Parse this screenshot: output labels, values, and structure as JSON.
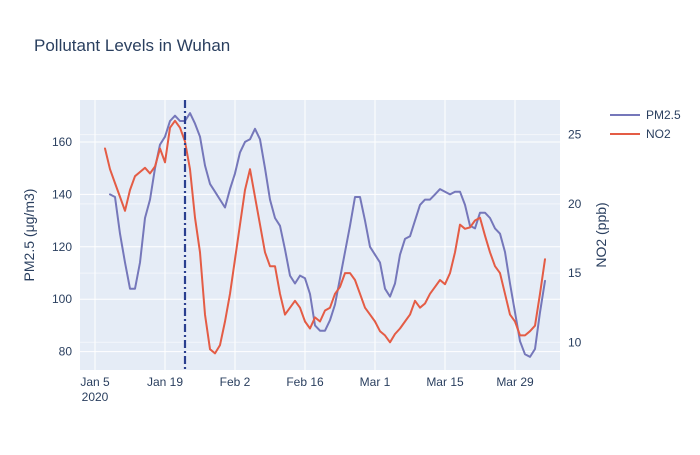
{
  "chart_data": {
    "type": "line",
    "title": "Pollutant Levels in Wuhan",
    "xlabel": "",
    "ylabel": "PM2.5 (μg/m3)",
    "y2label": "NO2 (ppb)",
    "x_ticks": [
      "Jan 5",
      "Jan 19",
      "Feb 2",
      "Feb 16",
      "Mar 1",
      "Mar 15",
      "Mar 29"
    ],
    "x_tick_dates": [
      "2020-01-05",
      "2020-01-19",
      "2020-02-02",
      "2020-02-16",
      "2020-03-01",
      "2020-03-15",
      "2020-03-29"
    ],
    "x_year_label": "2020",
    "xlim": [
      "2020-01-02",
      "2020-04-07"
    ],
    "ylim": [
      73,
      176
    ],
    "y_ticks": [
      80,
      100,
      120,
      140,
      160
    ],
    "y2lim": [
      8,
      27.5
    ],
    "y2_ticks": [
      10,
      15,
      20,
      25
    ],
    "grid": true,
    "legend_position": "top-right",
    "vline": {
      "x": "2020-01-23",
      "style": "dash-dot",
      "color": "#2a3f8f"
    },
    "series": [
      {
        "name": "PM2.5",
        "axis": "y",
        "color": "#7577ba",
        "x": [
          "2020-01-08",
          "2020-01-09",
          "2020-01-10",
          "2020-01-11",
          "2020-01-12",
          "2020-01-13",
          "2020-01-14",
          "2020-01-15",
          "2020-01-16",
          "2020-01-17",
          "2020-01-18",
          "2020-01-19",
          "2020-01-20",
          "2020-01-21",
          "2020-01-22",
          "2020-01-23",
          "2020-01-24",
          "2020-01-25",
          "2020-01-26",
          "2020-01-27",
          "2020-01-28",
          "2020-01-29",
          "2020-01-30",
          "2020-01-31",
          "2020-02-01",
          "2020-02-02",
          "2020-02-03",
          "2020-02-04",
          "2020-02-05",
          "2020-02-06",
          "2020-02-07",
          "2020-02-08",
          "2020-02-09",
          "2020-02-10",
          "2020-02-11",
          "2020-02-12",
          "2020-02-13",
          "2020-02-14",
          "2020-02-15",
          "2020-02-16",
          "2020-02-17",
          "2020-02-18",
          "2020-02-19",
          "2020-02-20",
          "2020-02-21",
          "2020-02-22",
          "2020-02-23",
          "2020-02-24",
          "2020-02-25",
          "2020-02-26",
          "2020-02-27",
          "2020-02-28",
          "2020-02-29",
          "2020-03-01",
          "2020-03-02",
          "2020-03-03",
          "2020-03-04",
          "2020-03-05",
          "2020-03-06",
          "2020-03-07",
          "2020-03-08",
          "2020-03-09",
          "2020-03-10",
          "2020-03-11",
          "2020-03-12",
          "2020-03-13",
          "2020-03-14",
          "2020-03-15",
          "2020-03-16",
          "2020-03-17",
          "2020-03-18",
          "2020-03-19",
          "2020-03-20",
          "2020-03-21",
          "2020-03-22",
          "2020-03-23",
          "2020-03-24",
          "2020-03-25",
          "2020-03-26",
          "2020-03-27",
          "2020-03-28",
          "2020-03-29",
          "2020-03-30",
          "2020-03-31",
          "2020-04-01",
          "2020-04-02",
          "2020-04-03",
          "2020-04-04"
        ],
        "values": [
          140,
          139,
          125,
          114,
          104,
          104,
          114,
          131,
          138,
          150,
          159,
          162,
          168,
          170,
          168,
          168,
          171,
          167,
          162,
          151,
          144,
          141,
          138,
          135,
          142,
          148,
          156,
          160,
          161,
          165,
          161,
          150,
          138,
          131,
          128,
          119,
          109,
          106,
          109,
          108,
          102,
          90,
          88,
          88,
          92,
          98,
          108,
          118,
          128,
          139,
          139,
          130,
          120,
          117,
          114,
          104,
          101,
          106,
          117,
          123,
          124,
          130,
          136,
          138,
          138,
          140,
          142,
          141,
          140,
          141,
          141,
          136,
          128,
          127,
          133,
          133,
          131,
          127,
          125,
          118,
          106,
          95,
          84,
          79,
          78,
          81,
          95,
          107
        ]
      },
      {
        "name": "NO2",
        "axis": "y2",
        "color": "#e45c45",
        "x": [
          "2020-01-07",
          "2020-01-08",
          "2020-01-09",
          "2020-01-10",
          "2020-01-11",
          "2020-01-12",
          "2020-01-13",
          "2020-01-14",
          "2020-01-15",
          "2020-01-16",
          "2020-01-17",
          "2020-01-18",
          "2020-01-19",
          "2020-01-20",
          "2020-01-21",
          "2020-01-22",
          "2020-01-23",
          "2020-01-24",
          "2020-01-25",
          "2020-01-26",
          "2020-01-27",
          "2020-01-28",
          "2020-01-29",
          "2020-01-30",
          "2020-01-31",
          "2020-02-01",
          "2020-02-02",
          "2020-02-03",
          "2020-02-04",
          "2020-02-05",
          "2020-02-06",
          "2020-02-07",
          "2020-02-08",
          "2020-02-09",
          "2020-02-10",
          "2020-02-11",
          "2020-02-12",
          "2020-02-13",
          "2020-02-14",
          "2020-02-15",
          "2020-02-16",
          "2020-02-17",
          "2020-02-18",
          "2020-02-19",
          "2020-02-20",
          "2020-02-21",
          "2020-02-22",
          "2020-02-23",
          "2020-02-24",
          "2020-02-25",
          "2020-02-26",
          "2020-02-27",
          "2020-02-28",
          "2020-02-29",
          "2020-03-01",
          "2020-03-02",
          "2020-03-03",
          "2020-03-04",
          "2020-03-05",
          "2020-03-06",
          "2020-03-07",
          "2020-03-08",
          "2020-03-09",
          "2020-03-10",
          "2020-03-11",
          "2020-03-12",
          "2020-03-13",
          "2020-03-14",
          "2020-03-15",
          "2020-03-16",
          "2020-03-17",
          "2020-03-18",
          "2020-03-19",
          "2020-03-20",
          "2020-03-21",
          "2020-03-22",
          "2020-03-23",
          "2020-03-24",
          "2020-03-25",
          "2020-03-26",
          "2020-03-27",
          "2020-03-28",
          "2020-03-29",
          "2020-03-30",
          "2020-03-31",
          "2020-04-01",
          "2020-04-02",
          "2020-04-03",
          "2020-04-04"
        ],
        "values": [
          24,
          22.5,
          21.5,
          20.5,
          19.5,
          21,
          22,
          22.3,
          22.6,
          22.2,
          22.7,
          24,
          23,
          25.5,
          26,
          25.5,
          24.5,
          22.5,
          19,
          16.5,
          12,
          9.5,
          9.2,
          9.8,
          11.5,
          13.5,
          16,
          18.5,
          21,
          22.5,
          20.5,
          18.5,
          16.5,
          15.5,
          15.5,
          13.5,
          12,
          12.5,
          13,
          12.5,
          11.5,
          11,
          11.8,
          11.5,
          12.3,
          12.5,
          13.5,
          14,
          15,
          15,
          14.5,
          13.5,
          12.5,
          12,
          11.5,
          10.8,
          10.5,
          10,
          10.6,
          11,
          11.5,
          12,
          13,
          12.5,
          12.8,
          13.5,
          14,
          14.5,
          14.2,
          15,
          16.5,
          18.5,
          18.2,
          18.3,
          18.8,
          19,
          17.7,
          16.5,
          15.5,
          15,
          13.5,
          12,
          11.5,
          10.5,
          10.5,
          10.8,
          11.2,
          13.5,
          16
        ]
      }
    ]
  }
}
